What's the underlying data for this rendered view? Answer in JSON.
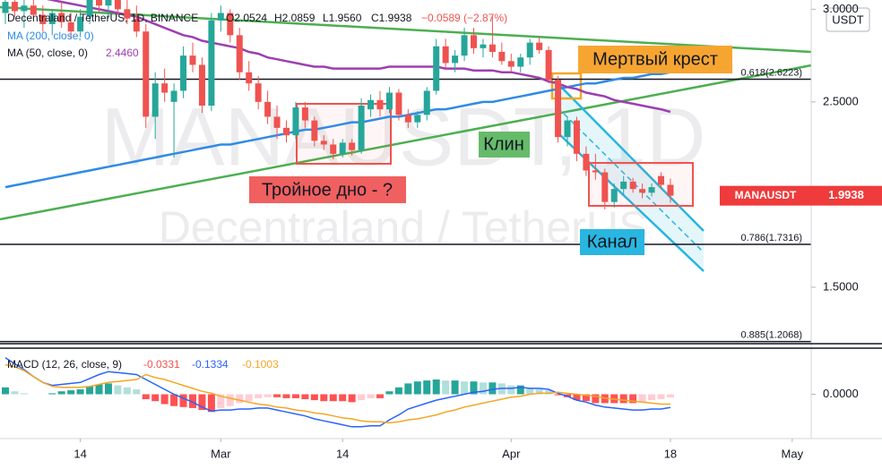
{
  "chart_data": {
    "type": "candlestick",
    "header": {
      "title": "Decentraland / TetherUS, 1D, BINANCE",
      "o": "O2.0524",
      "h": "H2.0859",
      "l": "L1.9560",
      "c": "C1.9938",
      "change": "−0.0589 (−2.87%)"
    },
    "watermark": [
      "MANAUSDT, 1D",
      "Decentraland / TetherUS"
    ],
    "unit": "USDT",
    "categories": [
      null,
      null,
      null,
      null,
      null,
      null,
      null,
      null,
      "14",
      null,
      null,
      null,
      null,
      null,
      null,
      null,
      null,
      null,
      null,
      null,
      null,
      null,
      null,
      "Mar",
      null,
      null,
      null,
      null,
      null,
      null,
      null,
      null,
      null,
      null,
      null,
      null,
      "14",
      null,
      null,
      null,
      null,
      null,
      null,
      null,
      null,
      null,
      null,
      null,
      null,
      null,
      null,
      null,
      null,
      null,
      "Apr",
      null,
      null,
      null,
      null,
      null,
      null,
      null,
      null,
      null,
      null,
      null,
      null,
      null,
      null,
      null,
      null,
      "18",
      null,
      null,
      null,
      null,
      null,
      null,
      null,
      null,
      null,
      null,
      null,
      null,
      "May"
    ],
    "open": [
      2.98,
      3.04,
      2.99,
      3.02,
      2.97,
      2.92,
      2.98,
      2.93,
      2.88,
      2.96,
      3.08,
      3.02,
      3.05,
      3.0,
      2.95,
      2.88,
      2.42,
      2.6,
      2.5,
      2.56,
      2.75,
      2.7,
      2.48,
      2.94,
      2.98,
      2.86,
      2.66,
      2.6,
      2.5,
      2.42,
      2.36,
      2.32,
      2.47,
      2.4,
      2.29,
      2.27,
      2.22,
      2.28,
      2.24,
      2.46,
      2.51,
      2.46,
      2.55,
      2.43,
      2.39,
      2.43,
      2.56,
      2.8,
      2.71,
      2.75,
      2.86,
      2.79,
      2.81,
      2.77,
      2.72,
      2.69,
      2.74,
      2.82,
      2.78,
      2.62,
      2.31,
      2.4,
      2.22,
      2.13,
      2.12,
      1.96,
      2.03,
      2.07,
      2.03,
      2.01,
      2.1,
      2.0524,
      null,
      null,
      null,
      null,
      null,
      null,
      null,
      null,
      null,
      null,
      null,
      null,
      null
    ],
    "high": [
      3.08,
      3.1,
      3.05,
      3.08,
      3.02,
      3.0,
      3.04,
      2.98,
      3.0,
      3.12,
      3.15,
      3.1,
      3.12,
      3.06,
      3.02,
      2.92,
      2.66,
      2.68,
      2.6,
      2.8,
      2.82,
      2.74,
      2.98,
      3.02,
      3.0,
      2.9,
      2.72,
      2.64,
      2.56,
      2.48,
      2.4,
      2.5,
      2.5,
      2.42,
      2.32,
      2.3,
      2.3,
      2.3,
      2.52,
      2.54,
      2.56,
      2.58,
      2.57,
      2.46,
      2.45,
      2.58,
      2.84,
      2.84,
      2.78,
      2.9,
      2.9,
      2.84,
      2.96,
      2.82,
      2.76,
      2.76,
      2.84,
      2.85,
      2.8,
      2.64,
      2.42,
      2.42,
      2.26,
      2.22,
      2.14,
      2.06,
      2.1,
      2.09,
      2.06,
      2.06,
      2.12,
      2.0859,
      null,
      null,
      null,
      null,
      null,
      null,
      null,
      null,
      null,
      null,
      null,
      null,
      null
    ],
    "low": [
      2.92,
      2.96,
      2.9,
      2.95,
      2.88,
      2.86,
      2.9,
      2.84,
      2.85,
      2.92,
      2.98,
      2.95,
      2.97,
      2.92,
      2.85,
      2.36,
      2.3,
      2.5,
      2.2,
      2.52,
      2.66,
      2.44,
      2.45,
      2.88,
      2.82,
      2.62,
      2.56,
      2.46,
      2.38,
      2.3,
      2.28,
      2.3,
      2.36,
      2.26,
      2.24,
      2.19,
      2.2,
      2.21,
      2.22,
      2.42,
      2.42,
      2.44,
      2.4,
      2.36,
      2.36,
      2.4,
      2.54,
      2.68,
      2.66,
      2.72,
      2.76,
      2.74,
      2.74,
      2.7,
      2.66,
      2.66,
      2.7,
      2.76,
      2.6,
      2.28,
      2.26,
      2.18,
      2.1,
      2.08,
      1.92,
      1.93,
      2.0,
      2.01,
      1.98,
      1.99,
      2.03,
      1.956,
      null,
      null,
      null,
      null,
      null,
      null,
      null,
      null,
      null,
      null,
      null,
      null,
      null
    ],
    "close": [
      3.04,
      2.99,
      3.02,
      2.97,
      2.92,
      2.98,
      2.93,
      2.88,
      2.96,
      3.08,
      3.02,
      3.05,
      3.0,
      2.95,
      2.88,
      2.42,
      2.6,
      2.55,
      2.56,
      2.75,
      2.7,
      2.48,
      2.94,
      2.98,
      2.86,
      2.66,
      2.6,
      2.5,
      2.42,
      2.36,
      2.32,
      2.47,
      2.4,
      2.29,
      2.27,
      2.22,
      2.28,
      2.24,
      2.48,
      2.51,
      2.46,
      2.55,
      2.43,
      2.39,
      2.43,
      2.56,
      2.8,
      2.71,
      2.75,
      2.86,
      2.79,
      2.81,
      2.77,
      2.72,
      2.69,
      2.74,
      2.82,
      2.78,
      2.62,
      2.31,
      2.4,
      2.22,
      2.13,
      2.12,
      1.96,
      2.03,
      2.07,
      2.03,
      2.01,
      2.04,
      2.0527,
      1.9938,
      null,
      null,
      null,
      null,
      null,
      null,
      null,
      null,
      null,
      null,
      null,
      null,
      null
    ],
    "up_color": "#26a69a",
    "down_color": "#ef5350",
    "ylim": [
      1.2,
      3.05
    ],
    "yticks": [
      {
        "value": 3,
        "label": "3.0000"
      },
      {
        "value": 2.5,
        "label": "2.5000"
      },
      {
        "value": 1.5,
        "label": "1.5000"
      }
    ],
    "series": [
      {
        "name": "MA (200, close, 0)",
        "color": "#2f8be6",
        "values": [
          2.04,
          2.05,
          2.06,
          2.07,
          2.08,
          2.09,
          2.1,
          2.11,
          2.12,
          2.13,
          2.14,
          2.15,
          2.16,
          2.17,
          2.18,
          2.19,
          2.2,
          2.21,
          2.22,
          2.23,
          2.24,
          2.25,
          2.26,
          2.27,
          2.27,
          2.28,
          2.29,
          2.3,
          2.31,
          2.32,
          2.33,
          2.34,
          2.35,
          2.35,
          2.36,
          2.37,
          2.38,
          2.39,
          2.39,
          2.4,
          2.41,
          2.42,
          2.42,
          2.43,
          2.44,
          2.45,
          2.46,
          2.46,
          2.47,
          2.48,
          2.49,
          2.5,
          2.5,
          2.51,
          2.52,
          2.53,
          2.54,
          2.55,
          2.56,
          2.57,
          2.58,
          2.59,
          2.6,
          2.6,
          2.61,
          2.62,
          2.63,
          2.63,
          2.64,
          2.65,
          2.65,
          2.66,
          null,
          null,
          null,
          null,
          null,
          null,
          null,
          null,
          null,
          null,
          null,
          null,
          null
        ]
      },
      {
        "name": "MA (50, close, 0)",
        "legend_value": "2.4460",
        "color": "#9c3fb0",
        "values": [
          3.1,
          3.09,
          3.08,
          3.07,
          3.06,
          3.05,
          3.04,
          3.03,
          3.02,
          3.01,
          3.0,
          2.99,
          2.98,
          2.97,
          2.96,
          2.94,
          2.92,
          2.9,
          2.88,
          2.86,
          2.85,
          2.83,
          2.82,
          2.81,
          2.8,
          2.79,
          2.77,
          2.76,
          2.74,
          2.73,
          2.72,
          2.71,
          2.7,
          2.69,
          2.69,
          2.68,
          2.68,
          2.68,
          2.68,
          2.68,
          2.68,
          2.69,
          2.69,
          2.69,
          2.69,
          2.69,
          2.69,
          2.68,
          2.68,
          2.68,
          2.67,
          2.67,
          2.67,
          2.66,
          2.66,
          2.65,
          2.64,
          2.63,
          2.61,
          2.6,
          2.58,
          2.57,
          2.55,
          2.54,
          2.53,
          2.51,
          2.5,
          2.49,
          2.48,
          2.47,
          2.46,
          2.446,
          null,
          null,
          null,
          null,
          null,
          null,
          null,
          null,
          null,
          null,
          null,
          null,
          null
        ]
      }
    ],
    "levels": [
      {
        "value": 2.6223,
        "label": "0.618(2.6223)"
      },
      {
        "value": 1.7316,
        "label": "0.786(1.7316)"
      },
      {
        "value": 1.2068,
        "label": "0.885(1.2068)"
      }
    ],
    "last_price": {
      "symbol": "MANAUSDT",
      "value": 1.9938
    },
    "annotations": [
      "Мертвый крест",
      "Клин",
      "Тройное дно - ?",
      "Канал"
    ],
    "macd": {
      "type": "macd",
      "title": "MACD (12, 26, close, 9)",
      "ylim": [
        -0.45,
        0.45
      ],
      "yticks": [
        {
          "value": 0,
          "label": "0.0000"
        }
      ],
      "series": [
        {
          "name": "Histogram",
          "color": "#ef5350",
          "values": [
            0.07,
            0.03,
            0.01,
            0.0,
            0.0,
            0.01,
            0.03,
            0.04,
            0.05,
            0.08,
            0.1,
            0.11,
            0.09,
            0.07,
            0.05,
            -0.05,
            -0.07,
            -0.1,
            -0.12,
            -0.13,
            -0.14,
            -0.16,
            -0.18,
            -0.14,
            -0.12,
            -0.09,
            -0.07,
            -0.04,
            -0.03,
            -0.03,
            -0.04,
            -0.04,
            -0.05,
            -0.06,
            -0.07,
            -0.07,
            -0.07,
            -0.08,
            -0.06,
            -0.04,
            -0.04,
            0.03,
            0.07,
            0.11,
            0.13,
            0.14,
            0.15,
            0.14,
            0.14,
            0.13,
            0.13,
            0.12,
            0.12,
            0.11,
            0.09,
            0.09,
            0.06,
            0.05,
            0.04,
            -0.01,
            -0.03,
            -0.06,
            -0.07,
            -0.09,
            -0.09,
            -0.09,
            -0.09,
            -0.09,
            -0.08,
            -0.06,
            -0.05,
            -0.0331,
            null,
            null,
            null,
            null,
            null,
            null,
            null,
            null,
            null,
            null,
            null,
            null,
            null
          ]
        },
        {
          "name": "MACD",
          "color": "#2962ff",
          "values": [
            0.37,
            0.31,
            0.25,
            0.18,
            0.12,
            0.09,
            0.1,
            0.11,
            0.12,
            0.16,
            0.2,
            0.23,
            0.22,
            0.21,
            0.2,
            0.15,
            0.1,
            0.05,
            0.0,
            -0.04,
            -0.08,
            -0.13,
            -0.17,
            -0.16,
            -0.16,
            -0.15,
            -0.15,
            -0.14,
            -0.14,
            -0.16,
            -0.18,
            -0.2,
            -0.22,
            -0.25,
            -0.27,
            -0.29,
            -0.31,
            -0.33,
            -0.33,
            -0.32,
            -0.32,
            -0.26,
            -0.21,
            -0.15,
            -0.12,
            -0.09,
            -0.06,
            -0.04,
            -0.02,
            0.0,
            0.02,
            0.03,
            0.05,
            0.06,
            0.06,
            0.07,
            0.06,
            0.06,
            0.05,
            0.01,
            -0.02,
            -0.06,
            -0.08,
            -0.11,
            -0.13,
            -0.14,
            -0.15,
            -0.16,
            -0.16,
            -0.15,
            -0.15,
            -0.1334,
            null,
            null,
            null,
            null,
            null,
            null,
            null,
            null,
            null,
            null,
            null,
            null,
            null
          ]
        },
        {
          "name": "Signal",
          "color": "#f5a623",
          "values": [
            0.3,
            0.28,
            0.24,
            0.18,
            0.12,
            0.08,
            0.07,
            0.07,
            0.07,
            0.08,
            0.1,
            0.12,
            0.13,
            0.14,
            0.15,
            0.2,
            0.17,
            0.15,
            0.12,
            0.09,
            0.06,
            0.03,
            0.01,
            -0.02,
            -0.04,
            -0.06,
            -0.08,
            -0.1,
            -0.11,
            -0.13,
            -0.14,
            -0.16,
            -0.17,
            -0.19,
            -0.2,
            -0.22,
            -0.24,
            -0.25,
            -0.27,
            -0.28,
            -0.28,
            -0.29,
            -0.28,
            -0.26,
            -0.25,
            -0.23,
            -0.21,
            -0.18,
            -0.16,
            -0.13,
            -0.11,
            -0.09,
            -0.07,
            -0.05,
            -0.03,
            -0.02,
            0.0,
            0.01,
            0.01,
            0.02,
            0.01,
            0.0,
            -0.01,
            -0.02,
            -0.04,
            -0.05,
            -0.06,
            -0.07,
            -0.08,
            -0.09,
            -0.1,
            -0.1003,
            null,
            null,
            null,
            null,
            null,
            null,
            null,
            null,
            null,
            null,
            null,
            null,
            null
          ]
        }
      ]
    }
  }
}
